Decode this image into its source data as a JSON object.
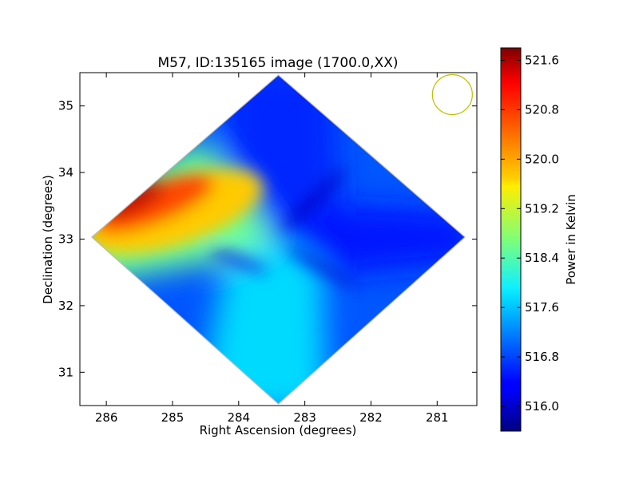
{
  "chart_data": [
    {
      "type": "heatmap",
      "title": "M57, ID:135165 image (1700.0,XX)",
      "xlabel": "Right Ascension (degrees)",
      "ylabel": "Declination (degrees)",
      "x_inverted": true,
      "xlim": [
        286.4,
        280.4
      ],
      "ylim": [
        30.5,
        35.5
      ],
      "xticks": [
        286,
        285,
        284,
        283,
        282,
        281
      ],
      "xtick_labels": [
        "286",
        "285",
        "284",
        "283",
        "282",
        "281"
      ],
      "yticks": [
        31,
        32,
        33,
        34,
        35
      ],
      "ytick_labels": [
        "31",
        "32",
        "33",
        "34",
        "35"
      ],
      "map_center": [
        283.4,
        33.03
      ],
      "map_half_width_deg": 2.82,
      "features": [
        {
          "name": "hot lobe",
          "direction": "east",
          "peak_value": 521.5
        },
        {
          "name": "cold lobe north",
          "direction": "north",
          "value": 516.6
        },
        {
          "name": "cold lobe west",
          "direction": "west",
          "value": 516.5
        },
        {
          "name": "mid lobe south",
          "direction": "south",
          "value": 517.7
        }
      ],
      "beam_marker": {
        "ra": 280.77,
        "dec": 35.17,
        "color": "#bfbf00"
      }
    },
    {
      "type": "colorbar",
      "label": "Power in Kelvin",
      "colormap": "jet",
      "vmin": 515.6,
      "vmax": 521.8,
      "ticks": [
        516.0,
        516.8,
        517.6,
        518.4,
        519.2,
        520.0,
        520.8,
        521.6
      ],
      "tick_labels": [
        "516.0",
        "516.8",
        "517.6",
        "518.4",
        "519.2",
        "520.0",
        "520.8",
        "521.6"
      ]
    }
  ]
}
